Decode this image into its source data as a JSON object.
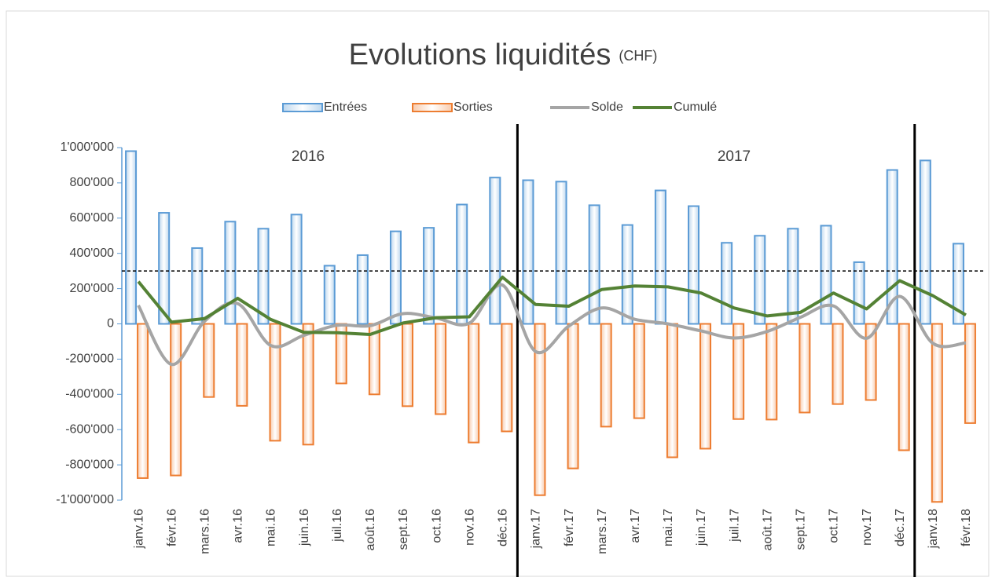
{
  "chart_data": {
    "type": "bar_line",
    "title": "Evolutions liquidités",
    "title_unit": "(CHF)",
    "annotations": [
      "2016",
      "2017"
    ],
    "categories": [
      "janv.16",
      "févr.16",
      "mars.16",
      "avr.16",
      "mai.16",
      "juin.16",
      "juil.16",
      "août.16",
      "sept.16",
      "oct.16",
      "nov.16",
      "déc.16",
      "janv.17",
      "févr.17",
      "mars.17",
      "avr.17",
      "mai.17",
      "juin.17",
      "juil.17",
      "août.17",
      "sept.17",
      "oct.17",
      "nov.17",
      "déc.17",
      "janv.18",
      "févr.18"
    ],
    "series": [
      {
        "name": "Entrées",
        "kind": "bar",
        "color": "#5b9bd5",
        "values": [
          980000,
          630000,
          430000,
          580000,
          540000,
          620000,
          330000,
          390000,
          525000,
          545000,
          677000,
          830000,
          815000,
          807000,
          673000,
          561000,
          757000,
          668000,
          460000,
          500000,
          540000,
          557000,
          350000,
          873000,
          927000,
          455000
        ]
      },
      {
        "name": "Sorties",
        "kind": "bar",
        "color": "#ed7d31",
        "values": [
          -875000,
          -860000,
          -415000,
          -465000,
          -663000,
          -685000,
          -338000,
          -400000,
          -467000,
          -512000,
          -673000,
          -610000,
          -972000,
          -820000,
          -583000,
          -535000,
          -757000,
          -708000,
          -540000,
          -543000,
          -503000,
          -455000,
          -432000,
          -717000,
          -1010000,
          -563000
        ]
      },
      {
        "name": "Solde",
        "kind": "line",
        "color": "#a5a5a5",
        "values": [
          105000,
          -230000,
          15000,
          115000,
          -123000,
          -65000,
          -8000,
          -10000,
          58000,
          33000,
          4000,
          220000,
          -157000,
          -13000,
          90000,
          26000,
          0,
          -40000,
          -80000,
          -43000,
          37000,
          102000,
          -82000,
          156000,
          -110000,
          -108000
        ]
      },
      {
        "name": "Cumulé",
        "kind": "line",
        "color": "#548235",
        "values": [
          240000,
          10000,
          30000,
          145000,
          25000,
          -48000,
          -50000,
          -60000,
          5000,
          35000,
          40000,
          265000,
          110000,
          100000,
          195000,
          215000,
          210000,
          175000,
          90000,
          45000,
          65000,
          175000,
          85000,
          245000,
          160000,
          50000
        ]
      }
    ],
    "reference_line": 300000,
    "ylim": [
      -1000000,
      1000000
    ],
    "yticks": [
      {
        "value": -1000000,
        "label": "-1'000'000"
      },
      {
        "value": -800000,
        "label": "-800'000"
      },
      {
        "value": -600000,
        "label": "-600'000"
      },
      {
        "value": -400000,
        "label": "-400'000"
      },
      {
        "value": -200000,
        "label": "-200'000"
      },
      0,
      {
        "value": 200000,
        "label": "200'000"
      },
      {
        "value": 400000,
        "label": "400'000"
      },
      {
        "value": 600000,
        "label": "600'000"
      },
      {
        "value": 800000,
        "label": "800'000"
      },
      {
        "value": 1000000,
        "label": "1'000'000"
      }
    ],
    "legend": "top"
  }
}
